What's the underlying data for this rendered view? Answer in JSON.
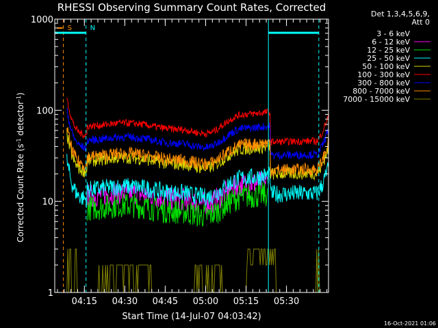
{
  "chart_data": {
    "type": "line",
    "title": "RHESSI Observing Summary Count Rates, Corrected",
    "xlabel": "Start Time (14-Jul-07 04:03:42)",
    "ylabel_prefix": "Corrected Count Rate (s",
    "ylabel_sup1": "-1",
    "ylabel_mid": " detector",
    "ylabel_sup2": "-1",
    "ylabel_suffix": ")",
    "footer_date": "16-Oct-2021 01:06",
    "yscale": "log",
    "ylim": [
      1,
      1000
    ],
    "xlim_minutes": [
      4.0,
      105.6
    ],
    "x_ticks": [
      {
        "label": "04:15",
        "minutes": 15
      },
      {
        "label": "04:30",
        "minutes": 30
      },
      {
        "label": "04:45",
        "minutes": 45
      },
      {
        "label": "05:00",
        "minutes": 60
      },
      {
        "label": "05:15",
        "minutes": 75
      },
      {
        "label": "05:30",
        "minutes": 90
      }
    ],
    "y_ticks": [
      {
        "label": "1",
        "value": 1
      },
      {
        "label": "10",
        "value": 10
      },
      {
        "label": "100",
        "value": 100
      },
      {
        "label": "1000",
        "value": 1000
      }
    ],
    "legend_header": [
      "Det 1,3,4,5,6,9,",
      "Att 0"
    ],
    "series": [
      {
        "name": "3 - 6 keV",
        "color": "#000000"
      },
      {
        "name": "6 - 12 keV",
        "color": "#ff00ff"
      },
      {
        "name": "12 - 25 keV",
        "color": "#00e000"
      },
      {
        "name": "25 - 50 keV",
        "color": "#00ffff"
      },
      {
        "name": "50 - 100 keV",
        "color": "#d8d800"
      },
      {
        "name": "100 - 300 keV",
        "color": "#ff0000"
      },
      {
        "name": "300 - 800 keV",
        "color": "#0000ff"
      },
      {
        "name": "800 - 7000 keV",
        "color": "#ff8c00"
      },
      {
        "name": "7000 - 15000 keV",
        "color": "#808000"
      }
    ],
    "annotations": [
      {
        "label": "S",
        "color": "#ff8c00",
        "minutes": 7.2,
        "kind": "dashed-line"
      },
      {
        "label": "N",
        "color": "#00ffff",
        "minutes": 15.6,
        "kind": "dashed-line"
      }
    ],
    "markers": [
      {
        "color": "#00ffff",
        "minutes": 83.3,
        "kind": "solid-line"
      },
      {
        "color": "#00ffff",
        "minutes": 102.0,
        "kind": "dashed-line"
      }
    ]
  }
}
